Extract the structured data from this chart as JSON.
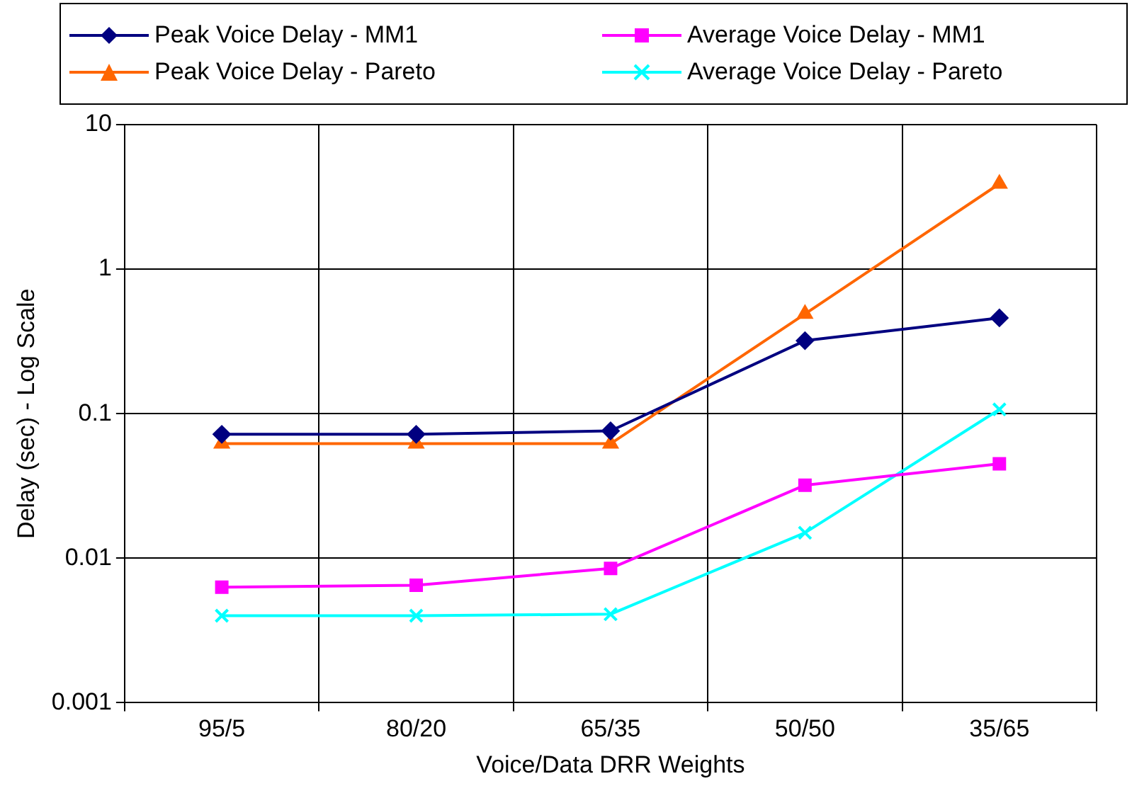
{
  "chart_data": {
    "type": "line",
    "xlabel": "Voice/Data DRR Weights",
    "ylabel": "Delay (sec) - Log Scale",
    "categories": [
      "95/5",
      "80/20",
      "65/35",
      "50/50",
      "35/65"
    ],
    "series": [
      {
        "name": "Peak Voice Delay - MM1",
        "color": "#000080",
        "marker": "diamond",
        "values": [
          0.072,
          0.072,
          0.076,
          0.32,
          0.46
        ]
      },
      {
        "name": "Average Voice Delay - MM1",
        "color": "#ff00ff",
        "marker": "square",
        "values": [
          0.0063,
          0.0065,
          0.0085,
          0.032,
          0.045
        ]
      },
      {
        "name": "Peak Voice Delay - Pareto",
        "color": "#ff6600",
        "marker": "triangle",
        "values": [
          0.062,
          0.062,
          0.062,
          0.49,
          3.9
        ]
      },
      {
        "name": "Average Voice Delay - Pareto",
        "color": "#00ffff",
        "marker": "cross",
        "values": [
          0.004,
          0.004,
          0.0041,
          0.015,
          0.107
        ]
      }
    ],
    "log": "y",
    "ylim": [
      0.001,
      10
    ],
    "yticks": [
      0.001,
      0.01,
      0.1,
      1,
      10
    ],
    "grid": true,
    "legend": "top",
    "line_style": "solid"
  }
}
